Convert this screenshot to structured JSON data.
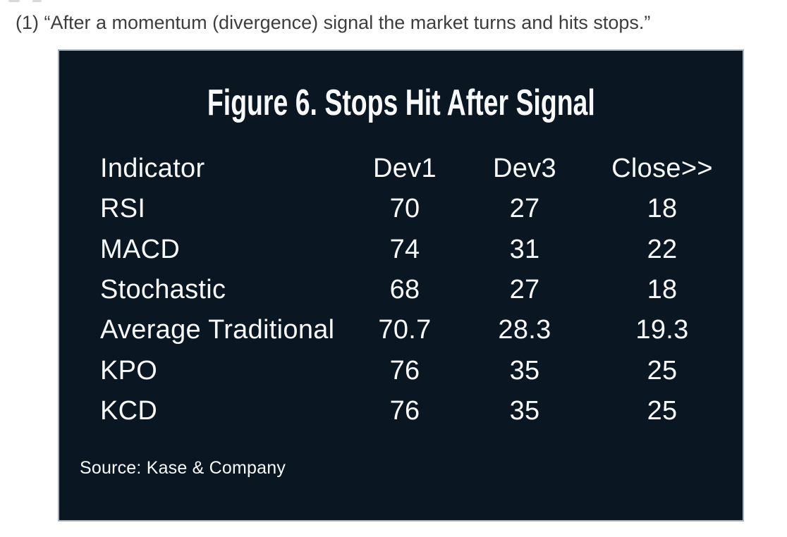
{
  "caption": "(1) “After a momentum (divergence) signal the market turns and hits stops.”",
  "figure": {
    "title": "Figure 6. Stops Hit After Signal",
    "columns": {
      "indicator": "Indicator",
      "dev1": "Dev1",
      "dev3": "Dev3",
      "close": "Close>>"
    },
    "rows": [
      {
        "indicator": "RSI",
        "dev1": "70",
        "dev3": "27",
        "close": "18"
      },
      {
        "indicator": "MACD",
        "dev1": "74",
        "dev3": "31",
        "close": "22"
      },
      {
        "indicator": "Stochastic",
        "dev1": "68",
        "dev3": "27",
        "close": "18"
      },
      {
        "indicator": "Average Traditional",
        "dev1": "70.7",
        "dev3": "28.3",
        "close": "19.3"
      },
      {
        "indicator": "KPO",
        "dev1": "76",
        "dev3": "35",
        "close": "25"
      },
      {
        "indicator": "KCD",
        "dev1": "76",
        "dev3": "35",
        "close": "25"
      }
    ],
    "source": "Source: Kase & Company"
  },
  "colors": {
    "panel_bg": "#0a1621",
    "panel_border": "#a9b2ba",
    "panel_text": "#f7f9fa",
    "caption_text": "#3d3d3d"
  }
}
